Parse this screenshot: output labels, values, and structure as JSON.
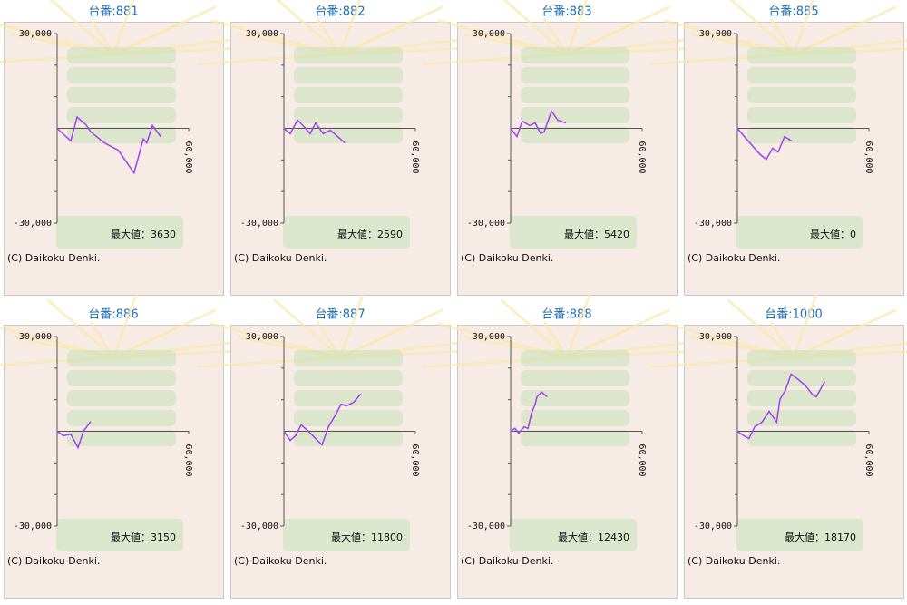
{
  "chart_data": [
    {
      "type": "line",
      "title": "台番:881",
      "max_label": "最大値：3630",
      "copyright": "(C) Daikoku Denki.",
      "xlim": [
        0,
        60000
      ],
      "xticks": [
        {
          "value": 60000,
          "label": "60,000"
        }
      ],
      "ylim": [
        -30000,
        30000
      ],
      "yticks": [
        {
          "value": 30000,
          "label": "30,000"
        },
        {
          "value": -30000,
          "label": "-30,000"
        }
      ],
      "yminor_ticks": [
        20000,
        10000,
        -10000,
        -20000
      ],
      "color": "#a040f0",
      "x": [
        0,
        6200,
        9100,
        13200,
        15300,
        21500,
        27800,
        35100,
        39300,
        40900,
        43500,
        47500
      ],
      "values": [
        0,
        -4000,
        3600,
        1100,
        -1100,
        -4600,
        -6900,
        -14100,
        -3400,
        -4600,
        900,
        -2900
      ]
    },
    {
      "type": "line",
      "title": "台番:882",
      "max_label": "最大値：2590",
      "copyright": "(C) Daikoku Denki.",
      "xlim": [
        0,
        60000
      ],
      "xticks": [
        {
          "value": 60000,
          "label": "60,000"
        }
      ],
      "ylim": [
        -30000,
        30000
      ],
      "yticks": [
        {
          "value": 30000,
          "label": "30,000"
        },
        {
          "value": -30000,
          "label": "-30,000"
        }
      ],
      "yminor_ticks": [
        20000,
        10000,
        -10000,
        -20000
      ],
      "color": "#a040f0",
      "x": [
        0,
        2900,
        6200,
        9500,
        12000,
        14500,
        17900,
        21200,
        23600,
        27800
      ],
      "values": [
        0,
        -1700,
        2600,
        300,
        -1700,
        1700,
        -1700,
        -600,
        -2000,
        -4600
      ]
    },
    {
      "type": "line",
      "title": "台番:883",
      "max_label": "最大値：5420",
      "copyright": "(C) Daikoku Denki.",
      "xlim": [
        0,
        60000
      ],
      "xticks": [
        {
          "value": 60000,
          "label": "60,000"
        }
      ],
      "ylim": [
        -30000,
        30000
      ],
      "yticks": [
        {
          "value": 30000,
          "label": "30,000"
        },
        {
          "value": -30000,
          "label": "-30,000"
        }
      ],
      "yminor_ticks": [
        20000,
        10000,
        -10000,
        -20000
      ],
      "color": "#a040f0",
      "x": [
        0,
        2900,
        5300,
        8600,
        11200,
        13700,
        15300,
        18600,
        21500,
        25200
      ],
      "values": [
        0,
        -2600,
        2300,
        900,
        1700,
        -1700,
        -1100,
        5400,
        2600,
        1700
      ]
    },
    {
      "type": "line",
      "title": "台番:885",
      "max_label": "最大値：0",
      "copyright": "(C) Daikoku Denki.",
      "xlim": [
        0,
        60000
      ],
      "xticks": [
        {
          "value": 60000,
          "label": "60,000"
        }
      ],
      "ylim": [
        -30000,
        30000
      ],
      "yticks": [
        {
          "value": 30000,
          "label": "30,000"
        },
        {
          "value": -30000,
          "label": "-30,000"
        }
      ],
      "yminor_ticks": [
        20000,
        10000,
        -10000,
        -20000
      ],
      "color": "#a040f0",
      "x": [
        0,
        4900,
        10400,
        13200,
        16100,
        18600,
        21500,
        24800
      ],
      "values": [
        0,
        -4000,
        -8300,
        -9800,
        -6300,
        -7500,
        -2600,
        -4000
      ]
    },
    {
      "type": "line",
      "title": "台番:886",
      "max_label": "最大値：3150",
      "copyright": "(C) Daikoku Denki.",
      "xlim": [
        0,
        60000
      ],
      "xticks": [
        {
          "value": 60000,
          "label": "60,000"
        }
      ],
      "ylim": [
        -30000,
        30000
      ],
      "yticks": [
        {
          "value": 30000,
          "label": "30,000"
        },
        {
          "value": -30000,
          "label": "-30,000"
        }
      ],
      "yminor_ticks": [
        20000,
        10000,
        -10000,
        -20000
      ],
      "color": "#a040f0",
      "x": [
        0,
        2900,
        6200,
        9500,
        12000,
        15300
      ],
      "values": [
        0,
        -1400,
        -900,
        -5200,
        0,
        3100
      ]
    },
    {
      "type": "line",
      "title": "台番:887",
      "max_label": "最大値：11800",
      "copyright": "(C) Daikoku Denki.",
      "xlim": [
        0,
        60000
      ],
      "xticks": [
        {
          "value": 60000,
          "label": "60,000"
        }
      ],
      "ylim": [
        -30000,
        30000
      ],
      "yticks": [
        {
          "value": 30000,
          "label": "30,000"
        },
        {
          "value": -30000,
          "label": "-30,000"
        }
      ],
      "yminor_ticks": [
        20000,
        10000,
        -10000,
        -20000
      ],
      "color": "#a040f0",
      "x": [
        0,
        2900,
        5300,
        7900,
        11200,
        15300,
        17400,
        20300,
        23600,
        26100,
        28500,
        31800,
        35100
      ],
      "values": [
        0,
        -2900,
        -1400,
        2000,
        0,
        -2900,
        -4300,
        1400,
        5200,
        8600,
        8000,
        9200,
        11800
      ]
    },
    {
      "type": "line",
      "title": "台番:888",
      "max_label": "最大値：12430",
      "copyright": "(C) Daikoku Denki.",
      "xlim": [
        0,
        60000
      ],
      "xticks": [
        {
          "value": 60000,
          "label": "60,000"
        }
      ],
      "ylim": [
        -30000,
        30000
      ],
      "yticks": [
        {
          "value": 30000,
          "label": "30,000"
        },
        {
          "value": -30000,
          "label": "-30,000"
        }
      ],
      "yminor_ticks": [
        20000,
        10000,
        -10000,
        -20000
      ],
      "color": "#a040f0",
      "x": [
        0,
        2000,
        3700,
        6200,
        7900,
        9500,
        11200,
        12000,
        14100,
        16600
      ],
      "values": [
        0,
        900,
        -600,
        1400,
        900,
        5700,
        8600,
        10900,
        12400,
        10900
      ]
    },
    {
      "type": "line",
      "title": "台番:1000",
      "max_label": "最大値：18170",
      "copyright": "(C) Daikoku Denki.",
      "xlim": [
        0,
        60000
      ],
      "xticks": [
        {
          "value": 60000,
          "label": "60,000"
        }
      ],
      "ylim": [
        -30000,
        30000
      ],
      "yticks": [
        {
          "value": 30000,
          "label": "30,000"
        },
        {
          "value": -30000,
          "label": "-30,000"
        }
      ],
      "yminor_ticks": [
        20000,
        10000,
        -10000,
        -20000
      ],
      "color": "#a040f0",
      "x": [
        0,
        2900,
        5300,
        7900,
        11200,
        14500,
        17900,
        19400,
        21900,
        24500,
        27800,
        31100,
        34400,
        36000,
        39900
      ],
      "values": [
        0,
        -1400,
        -2300,
        1400,
        2900,
        6300,
        2900,
        10100,
        12900,
        18100,
        16400,
        14400,
        11500,
        10900,
        15800
      ]
    }
  ]
}
